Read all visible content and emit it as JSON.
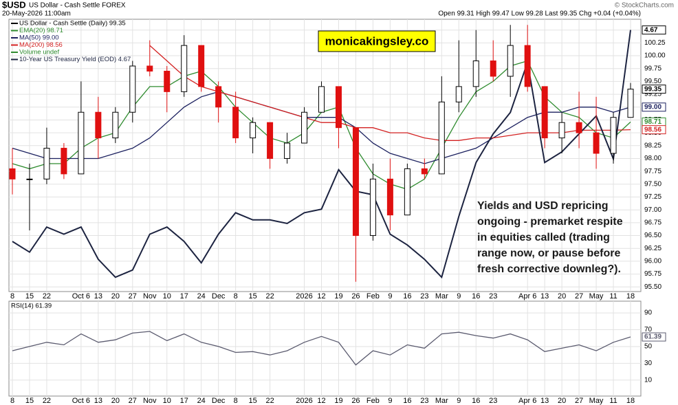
{
  "header": {
    "symbol": "$USD",
    "name": "US Dollar - Cash Settle FOREX",
    "date": "20-May-2026 11:00am",
    "quote": "Open 99.31  High 99.47  Low 99.28  Last 99.35  Chg +0.04 (+0.04%)",
    "credit": "© StockCharts.com"
  },
  "watermark": "monicakingsley.co",
  "commentary": [
    "Yields and USD repricing",
    "ongoing - premarket respite",
    "in equities called (trading",
    "range now, or pause before",
    "fresh corrective downleg?)."
  ],
  "chart_data": [
    {
      "type": "candlestick",
      "name": "US Dollar - Cash Settle (Daily) 99.35",
      "volume_label": "Volume undef",
      "categories": [
        "8",
        "15",
        "22",
        null,
        "Oct 6",
        "13",
        "20",
        "27",
        "Nov",
        "10",
        "17",
        "24",
        "Dec",
        "8",
        "15",
        "22",
        null,
        "2026",
        "12",
        "19",
        "26",
        "Feb",
        "9",
        "16",
        "23",
        "Mar",
        "9",
        "16",
        "23",
        null,
        "Apr 6",
        "13",
        "20",
        "27",
        "May",
        "11",
        "18"
      ],
      "open": [
        97.8,
        97.6,
        97.6,
        98.2,
        97.7,
        98.9,
        98.4,
        98.9,
        99.8,
        99.7,
        99.3,
        100.2,
        99.4,
        99.0,
        98.4,
        98.7,
        98.0,
        98.3,
        98.9,
        99.4,
        98.6,
        96.5,
        97.6,
        96.9,
        97.8,
        97.7,
        99.1,
        99.4,
        99.9,
        99.6,
        100.2,
        99.4,
        98.4,
        98.7,
        98.5,
        98.1,
        98.8
      ],
      "high": [
        98.2,
        97.9,
        98.6,
        98.3,
        99.5,
        99.2,
        99.0,
        99.9,
        100.3,
        99.8,
        100.4,
        100.2,
        99.5,
        99.3,
        98.8,
        98.7,
        98.5,
        99.0,
        99.5,
        99.4,
        98.6,
        97.9,
        98.0,
        97.9,
        98.0,
        99.6,
        100.3,
        100.5,
        100.3,
        100.6,
        100.6,
        99.4,
        98.9,
        99.3,
        99.2,
        98.9,
        99.47
      ],
      "low": [
        97.3,
        96.6,
        97.5,
        97.6,
        97.7,
        98.0,
        98.3,
        98.7,
        99.6,
        98.9,
        99.2,
        99.3,
        98.7,
        98.3,
        98.1,
        97.8,
        97.9,
        98.3,
        98.9,
        98.2,
        95.6,
        96.4,
        96.6,
        96.9,
        97.6,
        97.7,
        98.9,
        99.2,
        99.5,
        99.2,
        99.3,
        98.2,
        98.1,
        98.2,
        97.8,
        97.9,
        98.8
      ],
      "close": [
        97.6,
        97.6,
        98.2,
        97.7,
        98.9,
        98.4,
        98.9,
        99.8,
        99.7,
        99.3,
        100.2,
        99.4,
        99.0,
        98.4,
        98.7,
        98.0,
        98.3,
        98.9,
        99.4,
        98.6,
        96.5,
        97.6,
        96.9,
        97.8,
        97.7,
        99.1,
        99.4,
        99.9,
        99.6,
        100.2,
        99.4,
        98.4,
        98.7,
        98.5,
        98.1,
        98.8,
        99.35
      ],
      "up_color": "#000000",
      "down_color": "#e01010",
      "series": [
        {
          "name": "EMA(20) 98.71",
          "color": "#2e8b2e",
          "values": [
            97.9,
            97.8,
            97.9,
            97.9,
            98.2,
            98.4,
            98.5,
            99.0,
            99.4,
            99.4,
            99.6,
            99.7,
            99.4,
            99.0,
            98.7,
            98.4,
            98.3,
            98.5,
            98.9,
            99.0,
            98.2,
            97.7,
            97.5,
            97.4,
            97.6,
            98.2,
            98.8,
            99.3,
            99.5,
            99.8,
            99.9,
            99.2,
            98.9,
            98.8,
            98.5,
            98.4,
            98.71
          ]
        },
        {
          "name": "MA(50) 99.00",
          "color": "#1a1f5e",
          "values": [
            98.2,
            98.1,
            98.0,
            98.0,
            98.0,
            98.0,
            98.1,
            98.2,
            98.4,
            98.7,
            99.0,
            99.2,
            99.3,
            99.2,
            99.1,
            99.0,
            98.9,
            98.8,
            98.8,
            98.8,
            98.6,
            98.3,
            98.1,
            98.0,
            97.9,
            98.0,
            98.1,
            98.2,
            98.4,
            98.6,
            98.8,
            98.9,
            98.9,
            99.0,
            99.0,
            98.9,
            99.0
          ]
        },
        {
          "name": "MA(200) 98.56",
          "color": "#d32020",
          "values": [
            null,
            null,
            null,
            null,
            null,
            null,
            null,
            null,
            100.2,
            99.9,
            99.6,
            99.4,
            99.3,
            99.2,
            99.1,
            99.0,
            98.9,
            98.8,
            98.7,
            98.7,
            98.6,
            98.6,
            98.5,
            98.5,
            98.4,
            98.35,
            98.35,
            98.4,
            98.4,
            98.45,
            98.5,
            98.5,
            98.5,
            98.55,
            98.55,
            98.55,
            98.56
          ]
        },
        {
          "name": "10-Year US Treasury Yield (EOD) 4.67",
          "color": "#1c2340",
          "axis": "y2",
          "values": [
            4.08,
            4.05,
            4.12,
            4.1,
            4.12,
            4.03,
            3.98,
            4.0,
            4.1,
            4.12,
            4.08,
            4.02,
            4.1,
            4.16,
            4.14,
            4.14,
            4.13,
            4.16,
            4.17,
            4.28,
            4.22,
            4.21,
            4.1,
            4.07,
            4.03,
            3.98,
            4.15,
            4.3,
            4.38,
            4.44,
            4.58,
            4.3,
            4.33,
            4.38,
            4.43,
            4.31,
            4.67
          ]
        }
      ],
      "ylim": [
        95.41,
        100.71
      ],
      "y2lim": [
        3.94,
        4.7
      ],
      "yticks": [
        {
          "value": 95.5,
          "label": "95.50"
        },
        {
          "value": 95.75,
          "label": "95.75"
        },
        {
          "value": 96,
          "label": "96.00"
        },
        {
          "value": 96.25,
          "label": "96.25"
        },
        {
          "value": 96.5,
          "label": "96.50"
        },
        {
          "value": 96.75,
          "label": "96.75"
        },
        {
          "value": 97,
          "label": "97.00"
        },
        {
          "value": 97.25,
          "label": "97.25"
        },
        {
          "value": 97.5,
          "label": "97.50"
        },
        {
          "value": 97.75,
          "label": "97.75"
        },
        {
          "value": 98,
          "label": "98.00"
        },
        {
          "value": 98.25,
          "label": "98.25"
        },
        {
          "value": 98.5,
          "label": "98.50"
        },
        {
          "value": 98.75,
          "label": "98.75"
        },
        {
          "value": 99,
          "label": "99.00"
        },
        {
          "value": 99.25,
          "label": "99.25"
        },
        {
          "value": 99.5,
          "label": "99.50"
        },
        {
          "value": 99.75,
          "label": "99.75"
        },
        {
          "value": 100,
          "label": "100.00"
        },
        {
          "value": 100.25,
          "label": "100.25"
        },
        {
          "value": 100.5,
          "label": "100.50"
        }
      ],
      "tags": [
        {
          "value": 4.67,
          "label": "4.67",
          "axis": "y2",
          "color": "#000000"
        },
        {
          "value": 99.35,
          "label": "99.35",
          "color": "#000000"
        },
        {
          "value": 99.0,
          "label": "99.00",
          "color": "#1a1f5e"
        },
        {
          "value": 98.71,
          "label": "98.71",
          "color": "#2e8b2e"
        },
        {
          "value": 98.56,
          "label": "98.56",
          "color": "#d32020"
        }
      ],
      "grid": true
    },
    {
      "type": "line",
      "series": [
        {
          "name": "RSI(14) 61.39",
          "color": "#5a5a6e",
          "values": [
            45,
            50,
            55,
            52,
            65,
            55,
            58,
            66,
            68,
            57,
            65,
            55,
            50,
            43,
            44,
            40,
            45,
            55,
            62,
            55,
            28,
            45,
            40,
            52,
            48,
            65,
            67,
            63,
            60,
            65,
            58,
            44,
            48,
            52,
            45,
            55,
            61.39
          ]
        }
      ],
      "ylim": [
        -9,
        104
      ],
      "yticks": [
        10,
        30,
        50,
        70,
        90
      ],
      "tags": [
        {
          "value": 61.39,
          "label": "61.39",
          "color": "#5a5a6e"
        }
      ],
      "grid": true
    }
  ]
}
